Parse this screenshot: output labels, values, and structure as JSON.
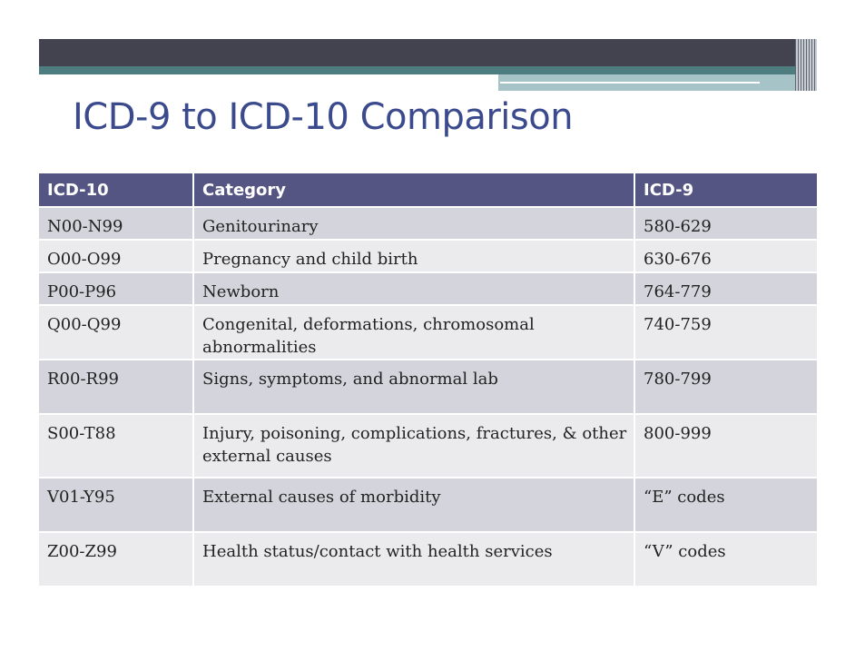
{
  "slide": {
    "title": "ICD-9 to ICD-10 Comparison"
  },
  "table": {
    "headers": [
      "ICD-10",
      "Category",
      "ICD-9"
    ],
    "rows": [
      [
        "N00-N99",
        "Genitourinary",
        "580-629"
      ],
      [
        "O00-O99",
        "Pregnancy and child birth",
        "630-676"
      ],
      [
        "P00-P96",
        "Newborn",
        "764-779"
      ],
      [
        "Q00-Q99",
        "Congenital, deformations, chromosomal abnormalities",
        "740-759"
      ],
      [
        "R00-R99",
        "Signs, symptoms, and abnormal lab",
        "780-799"
      ],
      [
        "S00-T88",
        "Injury, poisoning, complications, fractures, & other external causes",
        "800-999"
      ],
      [
        "V01-Y95",
        "External causes of morbidity",
        "“E” codes"
      ],
      [
        "Z00-Z99",
        "Health status/contact with health services",
        "“V” codes"
      ]
    ]
  },
  "colors": {
    "header_bg": "#545583",
    "title": "#3a4a8c",
    "row_odd": "#d4d4dc",
    "row_even": "#ebebee",
    "bar_dark": "#43424f",
    "bar_teal": "#4e7d7f"
  }
}
